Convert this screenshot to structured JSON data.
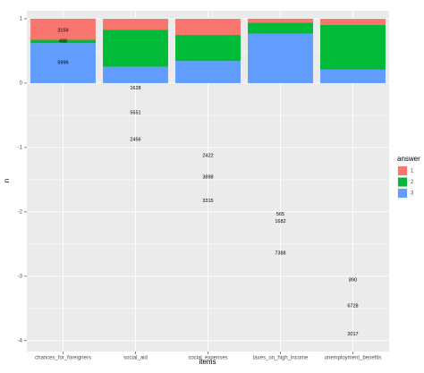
{
  "chart_data": {
    "type": "bar",
    "stacked": true,
    "x_label": "items",
    "y_label": "n",
    "categories": [
      "chances_for_foreigners",
      "social_aid",
      "social_expenses",
      "taxes_on_high_income",
      "unemployment_benefits"
    ],
    "series": [
      {
        "name": "1",
        "color": "#F8766D",
        "values": [
          0.328,
          0.169,
          0.251,
          0.059,
          0.092
        ],
        "counts": [
          "3159",
          "1628",
          "2422",
          "565",
          "890"
        ],
        "count_y": [
          0.82,
          -0.08,
          -1.13,
          -2.04,
          -3.06
        ]
      },
      {
        "name": "2",
        "color": "#00BA38",
        "values": [
          0.051,
          0.576,
          0.405,
          0.175,
          0.698
        ],
        "counts": [
          "488",
          "5551",
          "3898",
          "1682",
          "6728"
        ],
        "count_y": [
          0.65,
          -0.46,
          -1.46,
          -2.15,
          -3.46
        ]
      },
      {
        "name": "3",
        "color": "#619CFF",
        "values": [
          0.622,
          0.255,
          0.344,
          0.767,
          0.209
        ],
        "counts": [
          "5996",
          "2456",
          "3315",
          "7388",
          "2017"
        ],
        "count_y": [
          0.32,
          -0.88,
          -1.83,
          -2.64,
          -3.9
        ]
      }
    ],
    "ylim": [
      -4.17,
      1.125
    ],
    "yticks": [
      -4,
      -3,
      -2,
      -1,
      0,
      1
    ],
    "grid": true,
    "legend_title": "answer",
    "legend": "right"
  }
}
